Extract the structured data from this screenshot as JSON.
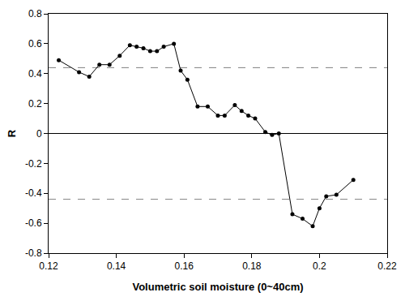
{
  "chart_data": {
    "type": "line",
    "xlabel": "Volumetric soil moisture (0~40cm)",
    "ylabel": "R",
    "x": [
      0.123,
      0.129,
      0.132,
      0.135,
      0.138,
      0.141,
      0.144,
      0.146,
      0.148,
      0.15,
      0.152,
      0.154,
      0.157,
      0.159,
      0.161,
      0.164,
      0.167,
      0.17,
      0.172,
      0.175,
      0.177,
      0.179,
      0.181,
      0.184,
      0.186,
      0.188,
      0.192,
      0.195,
      0.198,
      0.2,
      0.202,
      0.205,
      0.21
    ],
    "values": [
      0.49,
      0.41,
      0.38,
      0.46,
      0.46,
      0.52,
      0.59,
      0.58,
      0.57,
      0.55,
      0.55,
      0.58,
      0.6,
      0.42,
      0.36,
      0.18,
      0.18,
      0.12,
      0.12,
      0.19,
      0.15,
      0.12,
      0.1,
      0.01,
      -0.01,
      0.0,
      -0.54,
      -0.57,
      -0.62,
      -0.5,
      -0.42,
      -0.41,
      -0.31
    ],
    "color": "#000000",
    "marker": "circle",
    "line_style": "solid",
    "xlim": [
      0.12,
      0.22
    ],
    "xticks": [
      0.12,
      0.14,
      0.16,
      0.18,
      0.2,
      0.22
    ],
    "ylim": [
      -0.8,
      0.8
    ],
    "yticks": [
      -0.8,
      -0.6,
      -0.4,
      -0.2,
      0,
      0.2,
      0.4,
      0.6,
      0.8
    ],
    "grid": false,
    "reference_lines": [
      {
        "value": 0.44,
        "line_style": "dashed",
        "color": "#808080"
      },
      {
        "value": -0.44,
        "line_style": "dashed",
        "color": "#808080"
      },
      {
        "value": 0,
        "line_style": "solid",
        "color": "#000000"
      }
    ]
  }
}
